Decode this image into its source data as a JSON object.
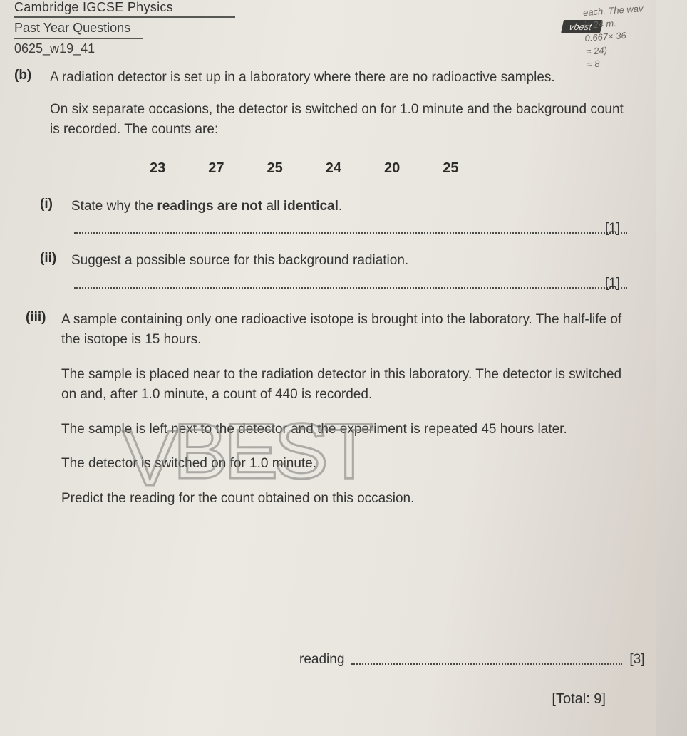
{
  "header": {
    "line1": "Cambridge IGCSE Physics",
    "line2": "Past Year Questions",
    "code": "0625_w19_41"
  },
  "tab": {
    "text": "vbest"
  },
  "edgeNotes": {
    "l1": "each. The wav",
    "l2": "is 24 m.",
    "l3": "0.667× 36",
    "l4": "= 24)",
    "l5": "= 8"
  },
  "question": {
    "label": "(b)",
    "intro": "A radiation detector is set up in a laboratory where there are no radioactive samples.",
    "intro2": "On six separate occasions, the detector is switched on for 1.0 minute and the background count is recorded. The counts are:",
    "counts": [
      "23",
      "27",
      "25",
      "24",
      "20",
      "25"
    ],
    "i": {
      "label": "(i)",
      "text": "State why the readings are not all identical.",
      "mark": "[1]"
    },
    "ii": {
      "label": "(ii)",
      "text": "Suggest a possible source for this background radiation.",
      "mark": "[1]"
    },
    "iii": {
      "label": "(iii)",
      "p1": "A sample containing only one radioactive isotope is brought into the laboratory. The half-life of the isotope is 15 hours.",
      "p2": "The sample is placed near to the radiation detector in this laboratory. The detector is switched on and, after 1.0 minute, a count of 440 is recorded.",
      "p3": "The sample is left next to the detector and the experiment is repeated 45 hours later.",
      "p4": "The detector is switched on for 1.0 minute.",
      "p5": "Predict the reading for the count obtained on this occasion.",
      "readingLabel": "reading",
      "mark": "[3]"
    },
    "total": "[Total: 9]"
  },
  "watermark": "VBEST"
}
